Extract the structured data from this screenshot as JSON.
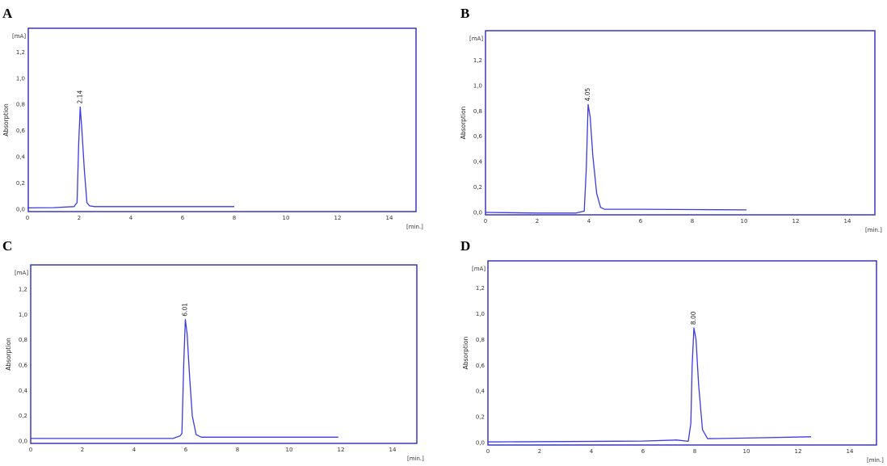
{
  "chart_data": [
    {
      "panel": "A",
      "type": "line",
      "y_unit": "[mA]",
      "x_unit": "[min.]",
      "ylabel": "Absorption",
      "xlim": [
        0,
        15
      ],
      "ylim": [
        0,
        1.35
      ],
      "x_ticks": [
        "0",
        "2",
        "4",
        "6",
        "8",
        "10",
        "12",
        "14"
      ],
      "y_ticks": [
        "0,0",
        "0,2",
        "0,4",
        "0,6",
        "0,8",
        "1,0",
        "1,2"
      ],
      "peak_label": "2.14",
      "peak": {
        "x": 2.04,
        "y": 0.78
      },
      "series": [
        {
          "x": [
            0,
            1.0,
            1.8,
            1.92,
            1.98,
            2.04,
            2.1,
            2.2,
            2.3,
            2.4,
            2.6,
            4,
            6,
            8
          ],
          "y": [
            0.01,
            0.012,
            0.02,
            0.05,
            0.5,
            0.78,
            0.62,
            0.3,
            0.05,
            0.025,
            0.02,
            0.02,
            0.02,
            0.02
          ]
        }
      ]
    },
    {
      "panel": "B",
      "type": "line",
      "y_unit": "[mA]",
      "x_unit": "[min.]",
      "ylabel": "Absorption",
      "xlim": [
        0,
        15
      ],
      "ylim": [
        0,
        1.4
      ],
      "x_ticks": [
        "0",
        "2",
        "4",
        "6",
        "8",
        "10",
        "12",
        "14"
      ],
      "y_ticks": [
        "0,0",
        "0,2",
        "0,4",
        "0,6",
        "0,8",
        "1,0",
        "1,2"
      ],
      "peak_label": "4.05",
      "peak": {
        "x": 3.97,
        "y": 0.85
      },
      "series": [
        {
          "x": [
            0,
            2,
            3.5,
            3.82,
            3.9,
            3.97,
            4.05,
            4.15,
            4.3,
            4.45,
            4.6,
            6,
            8,
            10.1
          ],
          "y": [
            0.0,
            -0.005,
            -0.005,
            0.01,
            0.35,
            0.85,
            0.75,
            0.45,
            0.15,
            0.04,
            0.025,
            0.025,
            0.022,
            0.02
          ]
        }
      ]
    },
    {
      "panel": "C",
      "type": "line",
      "y_unit": "[mA]",
      "x_unit": "[min.]",
      "ylabel": "Absorption",
      "xlim": [
        0,
        15
      ],
      "ylim": [
        0,
        1.36
      ],
      "x_ticks": [
        "0",
        "2",
        "4",
        "6",
        "8",
        "10",
        "12",
        "14"
      ],
      "y_ticks": [
        "0,0",
        "0,2",
        "0,4",
        "0,6",
        "0,8",
        "1,0",
        "1,2"
      ],
      "peak_label": "6.01",
      "peak": {
        "x": 5.98,
        "y": 0.96
      },
      "series": [
        {
          "x": [
            0,
            5.5,
            5.78,
            5.85,
            5.92,
            5.98,
            6.05,
            6.15,
            6.25,
            6.4,
            6.6,
            8,
            10,
            11.9
          ],
          "y": [
            0.02,
            0.02,
            0.04,
            0.06,
            0.6,
            0.96,
            0.85,
            0.5,
            0.2,
            0.05,
            0.03,
            0.03,
            0.03,
            0.03
          ]
        }
      ]
    },
    {
      "panel": "D",
      "type": "line",
      "y_unit": "[mA]",
      "x_unit": "[min.]",
      "ylabel": "Absorption",
      "xlim": [
        0,
        15
      ],
      "ylim": [
        0,
        1.38
      ],
      "x_ticks": [
        "0",
        "2",
        "4",
        "6",
        "8",
        "10",
        "12",
        "14"
      ],
      "y_ticks": [
        "0,0",
        "0,2",
        "0,4",
        "0,6",
        "0,8",
        "1,0",
        "1,2"
      ],
      "peak_label": "8.00",
      "peak": {
        "x": 7.97,
        "y": 0.89
      },
      "series": [
        {
          "x": [
            0,
            3,
            6,
            7.3,
            7.75,
            7.85,
            7.9,
            7.97,
            8.05,
            8.15,
            8.3,
            8.5,
            10,
            12.5
          ],
          "y": [
            0.005,
            0.008,
            0.012,
            0.02,
            0.01,
            0.15,
            0.6,
            0.89,
            0.8,
            0.45,
            0.1,
            0.03,
            0.035,
            0.045
          ]
        }
      ]
    }
  ]
}
